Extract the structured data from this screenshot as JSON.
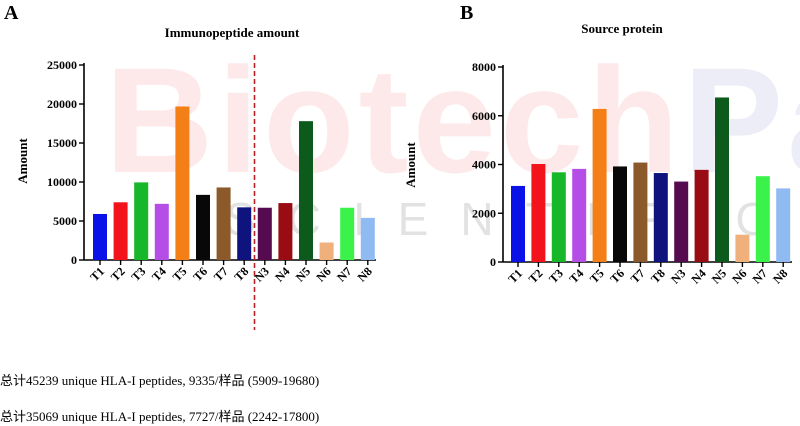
{
  "watermark": {
    "main_a": "Biotech",
    "main_b": "Pack",
    "sub": "SCIENTIFIC"
  },
  "panels": {
    "a": {
      "letter": "A",
      "title": "Immunopeptide amount",
      "ylabel": "Amount"
    },
    "b": {
      "letter": "B",
      "title": "Source protein",
      "ylabel": "Amount"
    }
  },
  "chart_data": [
    {
      "type": "bar",
      "title": "Immunopeptide amount",
      "xlabel": "",
      "ylabel": "Amount",
      "ylim": [
        0,
        25000
      ],
      "yticks": [
        0,
        5000,
        10000,
        15000,
        20000,
        25000
      ],
      "ytick_labels": [
        "0",
        "5000",
        "10000",
        "15000",
        "20000",
        "25000"
      ],
      "categories": [
        "T1",
        "T2",
        "T3",
        "T4",
        "T5",
        "T6",
        "T7",
        "T8",
        "N3",
        "N4",
        "N5",
        "N6",
        "N7",
        "N8"
      ],
      "values": [
        5900,
        7400,
        9950,
        7200,
        19680,
        8350,
        9300,
        6750,
        6700,
        7300,
        17800,
        2242,
        6700,
        5400
      ],
      "colors": [
        "#0b12e8",
        "#f2141a",
        "#16b728",
        "#b54ee6",
        "#f47f17",
        "#080808",
        "#8c5a2a",
        "#0e137e",
        "#560b50",
        "#9a0c14",
        "#0d5a1d",
        "#f0b07c",
        "#3af24a",
        "#90baf2"
      ],
      "separator_after": "T8",
      "separator_color": "#b82222",
      "grid": false
    },
    {
      "type": "bar",
      "title": "Source protein",
      "xlabel": "",
      "ylabel": "Amount",
      "ylim": [
        0,
        8000
      ],
      "yticks": [
        0,
        2000,
        4000,
        6000,
        8000
      ],
      "ytick_labels": [
        "0",
        "2000",
        "4000",
        "6000",
        "8000"
      ],
      "categories": [
        "T1",
        "T2",
        "T3",
        "T4",
        "T5",
        "T6",
        "T7",
        "T8",
        "N3",
        "N4",
        "N5",
        "N6",
        "N7",
        "N8"
      ],
      "values": [
        3120,
        4020,
        3680,
        3820,
        6280,
        3920,
        4080,
        3650,
        3300,
        3780,
        6750,
        1120,
        3520,
        3020
      ],
      "colors": [
        "#0b12e8",
        "#f2141a",
        "#16b728",
        "#b54ee6",
        "#f47f17",
        "#080808",
        "#8c5a2a",
        "#0e137e",
        "#560b50",
        "#9a0c14",
        "#0d5a1d",
        "#f0b07c",
        "#3af24a",
        "#90baf2"
      ],
      "grid": false
    }
  ],
  "summary": {
    "line1": "总计45239 unique HLA-I peptides, 9335/样品 (5909-19680)",
    "line2": "总计35069 unique HLA-I peptides, 7727/样品 (2242-17800)"
  }
}
